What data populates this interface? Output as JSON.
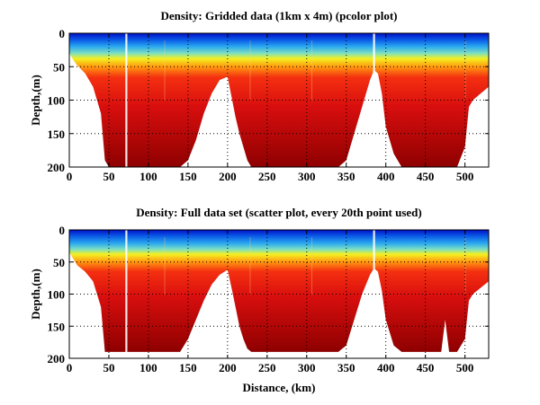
{
  "chart_data": [
    {
      "type": "heatmap",
      "title": "Density: Gridded data (1km x 4m) (pcolor plot)",
      "xlabel": "",
      "ylabel": "Depth,(m)",
      "xlim": [
        0,
        530
      ],
      "ylim": [
        200,
        0
      ],
      "xticks": [
        "0",
        "50",
        "100",
        "150",
        "200",
        "250",
        "300",
        "350",
        "400",
        "450",
        "500"
      ],
      "yticks": [
        "0",
        "50",
        "100",
        "150",
        "200"
      ],
      "grid": true,
      "colormap": "jet",
      "bottom_profile_km": [
        0,
        5,
        10,
        20,
        30,
        40,
        45,
        50,
        60,
        70,
        80,
        90,
        100,
        110,
        120,
        130,
        140,
        150,
        160,
        170,
        180,
        190,
        200,
        205,
        210,
        215,
        220,
        225,
        230,
        240,
        250,
        260,
        270,
        280,
        290,
        300,
        310,
        320,
        330,
        340,
        350,
        360,
        370,
        380,
        385,
        390,
        395,
        400,
        410,
        420,
        430,
        440,
        450,
        460,
        470,
        480,
        490,
        500,
        505,
        510,
        520,
        530
      ],
      "bottom_profile_depth_m": [
        30,
        40,
        48,
        60,
        80,
        120,
        190,
        200,
        200,
        200,
        200,
        200,
        200,
        200,
        200,
        200,
        200,
        190,
        160,
        120,
        90,
        70,
        65,
        95,
        125,
        150,
        170,
        190,
        200,
        200,
        200,
        200,
        200,
        200,
        200,
        200,
        200,
        200,
        200,
        200,
        190,
        150,
        110,
        70,
        55,
        60,
        90,
        140,
        180,
        200,
        200,
        200,
        200,
        200,
        200,
        200,
        200,
        170,
        110,
        100,
        90,
        80
      ]
    },
    {
      "type": "scatter",
      "title": "Density: Full data set (scatter plot, every 20th point used)",
      "xlabel": "Distance, (km)",
      "ylabel": "Depth,(m)",
      "xlim": [
        0,
        530
      ],
      "ylim": [
        200,
        0
      ],
      "xticks": [
        "0",
        "50",
        "100",
        "150",
        "200",
        "250",
        "300",
        "350",
        "400",
        "450",
        "500"
      ],
      "yticks": [
        "0",
        "50",
        "100",
        "150",
        "200"
      ],
      "grid": true,
      "colormap": "jet",
      "bottom_profile_km": [
        0,
        5,
        10,
        20,
        30,
        40,
        45,
        50,
        60,
        70,
        80,
        90,
        100,
        110,
        120,
        130,
        140,
        150,
        160,
        170,
        180,
        190,
        200,
        205,
        210,
        215,
        220,
        225,
        230,
        240,
        250,
        260,
        270,
        280,
        290,
        300,
        310,
        320,
        330,
        340,
        350,
        360,
        370,
        380,
        385,
        390,
        395,
        400,
        410,
        420,
        430,
        440,
        450,
        460,
        470,
        475,
        480,
        490,
        500,
        505,
        510,
        520,
        530
      ],
      "bottom_profile_depth_m": [
        35,
        45,
        55,
        65,
        80,
        120,
        190,
        190,
        190,
        190,
        190,
        190,
        190,
        190,
        190,
        190,
        190,
        170,
        140,
        110,
        85,
        70,
        62,
        90,
        120,
        150,
        170,
        185,
        190,
        190,
        190,
        190,
        190,
        190,
        190,
        190,
        190,
        190,
        190,
        190,
        180,
        140,
        100,
        70,
        60,
        65,
        95,
        140,
        180,
        190,
        190,
        190,
        190,
        190,
        190,
        140,
        190,
        190,
        170,
        110,
        100,
        90,
        80
      ]
    }
  ]
}
